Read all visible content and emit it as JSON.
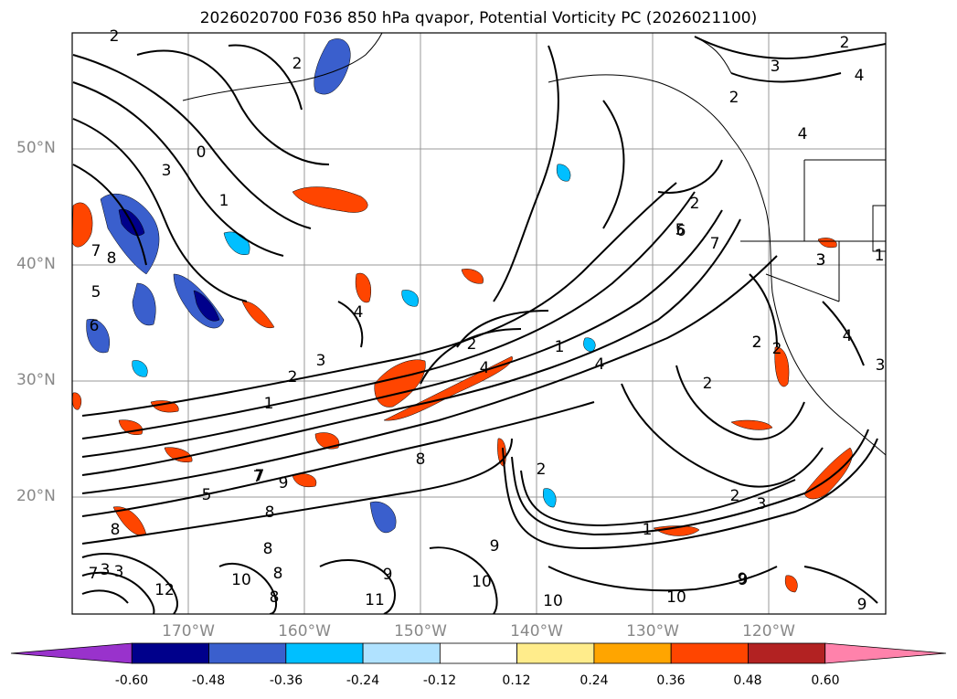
{
  "title": "2026020700 F036 850 hPa qvapor, Potential Vorticity PC (2026021100)",
  "lat_labels": [
    "50°N",
    "40°N",
    "30°N",
    "20°N"
  ],
  "lon_labels": [
    "170°W",
    "160°W",
    "150°W",
    "140°W",
    "130°W",
    "120°W"
  ],
  "colorbar": {
    "levels": [
      "-0.60",
      "-0.48",
      "-0.36",
      "-0.24",
      "-0.12",
      "0.12",
      "0.24",
      "0.36",
      "0.48",
      "0.60"
    ],
    "colors": [
      "#9932cc",
      "#00008b",
      "#3a5fcd",
      "#00bfff",
      "#b0e2ff",
      "#ffffff",
      "#ffec8b",
      "#ffa500",
      "#ff4500",
      "#b22222",
      "#ff82ab"
    ]
  },
  "contour_labels": [
    "2",
    "2",
    "3",
    "2",
    "4",
    "2",
    "4",
    "0",
    "1",
    "3",
    "7",
    "8",
    "5",
    "6",
    "4",
    "2",
    "1",
    "2",
    "3",
    "4",
    "1",
    "2",
    "7",
    "6",
    "4",
    "2",
    "1",
    "2",
    "3",
    "7",
    "5",
    "8",
    "8",
    "9",
    "8",
    "12",
    "11",
    "8",
    "9",
    "10",
    "9",
    "10",
    "10",
    "9",
    "9",
    "2",
    "3",
    "8",
    "2",
    "4",
    "1",
    "10",
    "7",
    "3",
    "2",
    "3",
    "5",
    "3",
    "2",
    "3",
    "7",
    "8",
    "9"
  ]
}
